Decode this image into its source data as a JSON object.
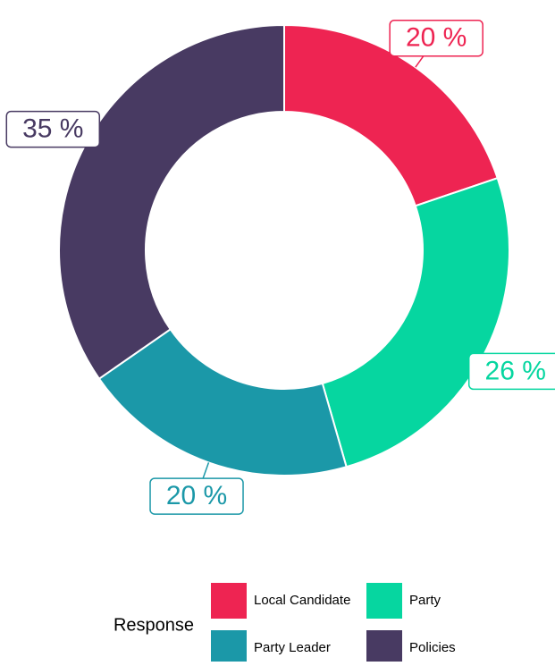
{
  "chart_data": {
    "type": "donut",
    "categories": [
      "Local Candidate",
      "Party",
      "Party Leader",
      "Policies"
    ],
    "values": [
      20,
      26,
      20,
      35
    ],
    "value_labels": [
      "20 %",
      "26 %",
      "20 %",
      "35 %"
    ],
    "colors": [
      "#ee2452",
      "#06d6a0",
      "#1b98a8",
      "#483a62"
    ],
    "legend_title": "Response"
  }
}
